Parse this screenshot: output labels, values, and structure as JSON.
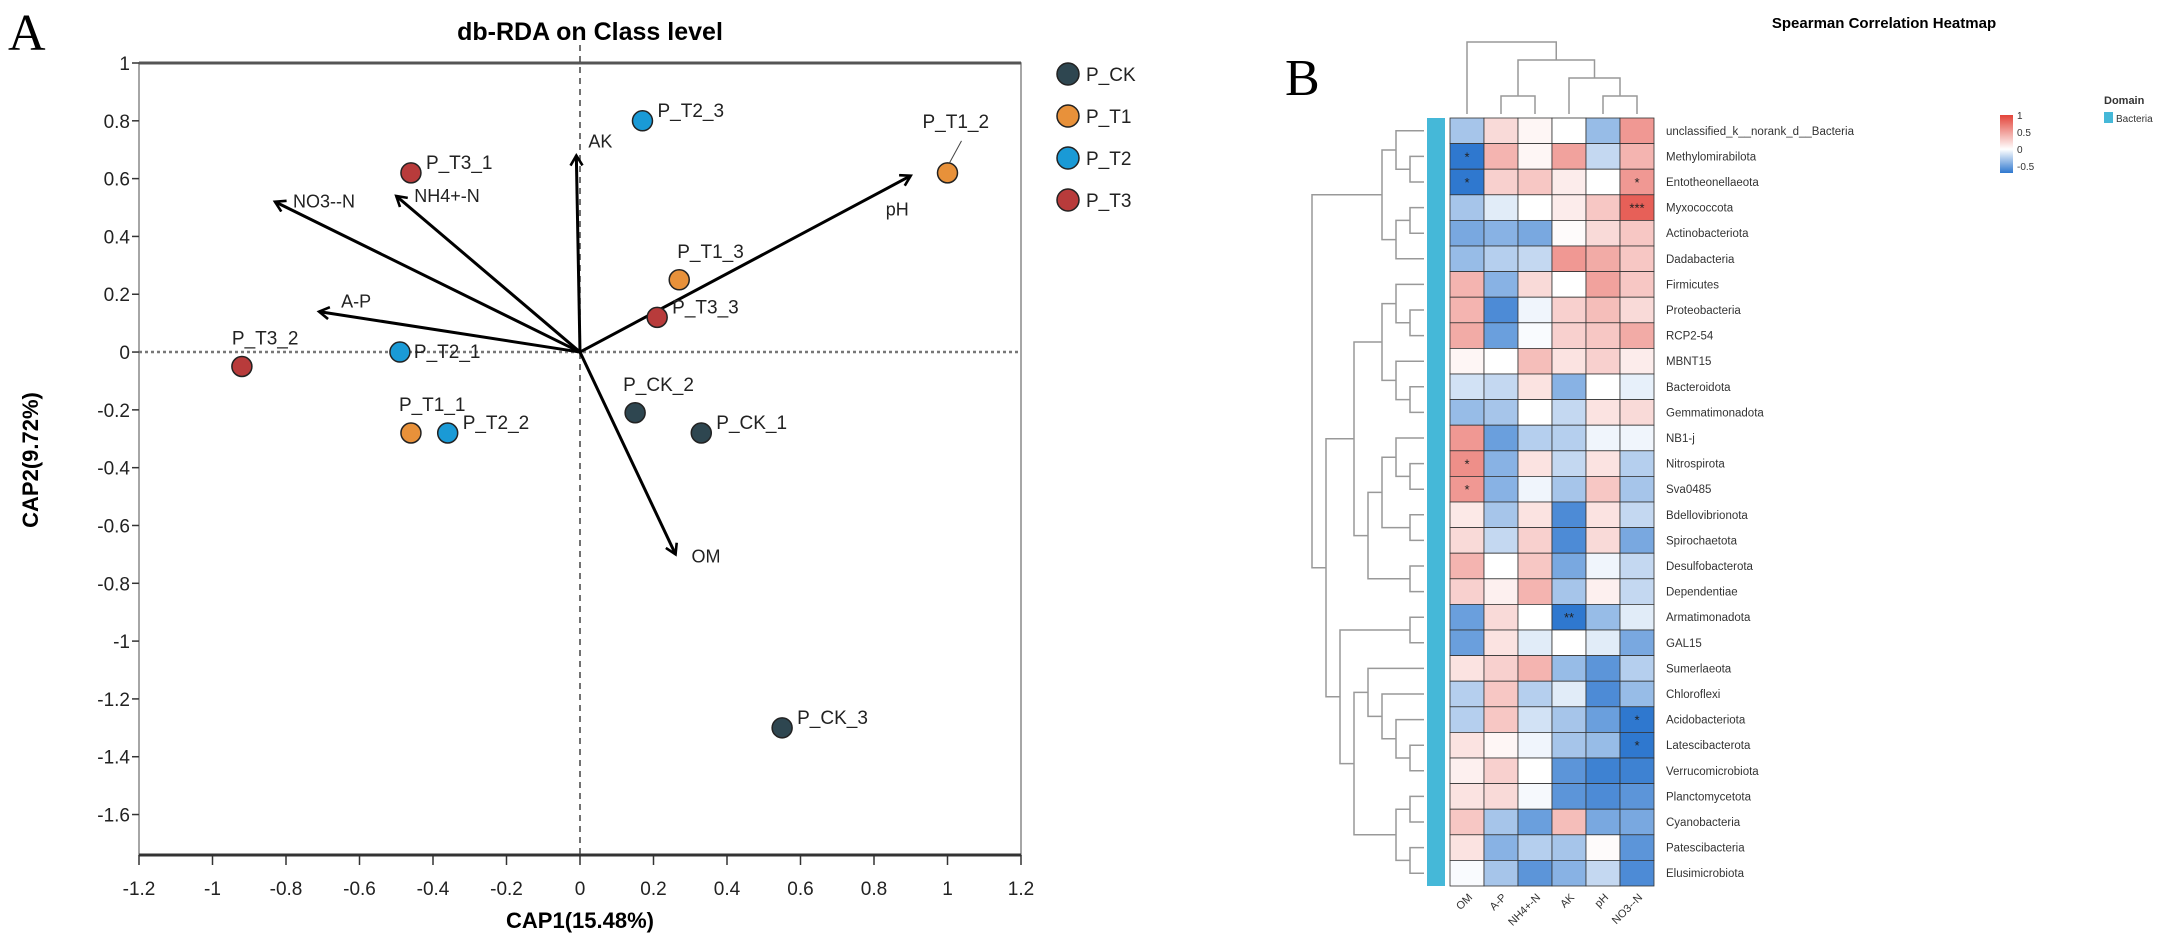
{
  "panel_labels": {
    "a": "A",
    "b": "B"
  },
  "chart_data": [
    {
      "type": "scatter",
      "title": "db-RDA on Class level",
      "xlabel": "CAP1(15.48%)",
      "ylabel": "CAP2(9.72%)",
      "xlim": [
        -1.2,
        1.2
      ],
      "ylim": [
        -1.74,
        1
      ],
      "xticks": [
        "-1.2",
        "-1",
        "-0.8",
        "-0.6",
        "-0.4",
        "-0.2",
        "0",
        "0.2",
        "0.4",
        "0.6",
        "0.8",
        "1",
        "1.2"
      ],
      "yticks": [
        "1",
        "0.8",
        "0.6",
        "0.4",
        "0.2",
        "0",
        "-0.2",
        "-0.4",
        "-0.6",
        "-0.8",
        "-1",
        "-1.2",
        "-1.4",
        "-1.6"
      ],
      "legend": {
        "placement": "right",
        "items": [
          {
            "name": "P_CK",
            "color": "#2e4650"
          },
          {
            "name": "P_T1",
            "color": "#e8913a"
          },
          {
            "name": "P_T2",
            "color": "#1a9ad6"
          },
          {
            "name": "P_T3",
            "color": "#b83b3b"
          }
        ]
      },
      "points": [
        {
          "label": "P_T2_3",
          "group": "P_T2",
          "x": 0.17,
          "y": 0.8
        },
        {
          "label": "P_T1_2",
          "group": "P_T1",
          "x": 1.0,
          "y": 0.62
        },
        {
          "label": "P_T3_1",
          "group": "P_T3",
          "x": -0.46,
          "y": 0.62
        },
        {
          "label": "P_T1_3",
          "group": "P_T1",
          "x": 0.27,
          "y": 0.25
        },
        {
          "label": "P_T3_3",
          "group": "P_T3",
          "x": 0.21,
          "y": 0.12
        },
        {
          "label": "P_T3_2",
          "group": "P_T3",
          "x": -0.92,
          "y": -0.05
        },
        {
          "label": "P_T2_1",
          "group": "P_T2",
          "x": -0.49,
          "y": 0.0
        },
        {
          "label": "P_CK_2",
          "group": "P_CK",
          "x": 0.15,
          "y": -0.21
        },
        {
          "label": "P_CK_1",
          "group": "P_CK",
          "x": 0.33,
          "y": -0.28
        },
        {
          "label": "P_T1_1",
          "group": "P_T1",
          "x": -0.46,
          "y": -0.28
        },
        {
          "label": "P_T2_2",
          "group": "P_T2",
          "x": -0.36,
          "y": -0.28
        },
        {
          "label": "P_CK_3",
          "group": "P_CK",
          "x": 0.55,
          "y": -1.3
        }
      ],
      "arrows": [
        {
          "label": "AK",
          "x": -0.01,
          "y": 0.68
        },
        {
          "label": "pH",
          "x": 0.9,
          "y": 0.61
        },
        {
          "label": "NO3--N",
          "x": -0.83,
          "y": 0.52
        },
        {
          "label": "NH4+-N",
          "x": -0.5,
          "y": 0.54
        },
        {
          "label": "A-P",
          "x": -0.71,
          "y": 0.14
        },
        {
          "label": "OM",
          "x": 0.26,
          "y": -0.7
        }
      ]
    },
    {
      "type": "heatmap",
      "title": "Spearman Correlation Heatmap",
      "columns": [
        "OM",
        "A-P",
        "NH4+-N",
        "AK",
        "pH",
        "NO3--N"
      ],
      "rows": [
        "unclassified_k__norank_d__Bacteria",
        "Methylomirabilota",
        "Entotheonellaeota",
        "Myxococcota",
        "Actinobacteriota",
        "Dadabacteria",
        "Firmicutes",
        "Proteobacteria",
        "RCP2-54",
        "MBNT15",
        "Bacteroidota",
        "Gemmatimonadota",
        "NB1-j",
        "Nitrospirota",
        "Sva0485",
        "Bdellovibrionota",
        "Spirochaetota",
        "Desulfobacterota",
        "Dependentiae",
        "Armatimonadota",
        "GAL15",
        "Sumerlaeota",
        "Chloroflexi",
        "Acidobacteriota",
        "Latescibacterota",
        "Verrucomicrobiota",
        "Planctomycetota",
        "Cyanobacteria",
        "Patescibacteria",
        "Elusimicrobiota"
      ],
      "values": [
        [
          -0.3,
          0.2,
          0.05,
          0.0,
          -0.35,
          0.55
        ],
        [
          -0.75,
          0.4,
          0.05,
          0.5,
          -0.2,
          0.4
        ],
        [
          -0.75,
          0.25,
          0.3,
          0.1,
          0.0,
          0.55
        ],
        [
          -0.3,
          -0.1,
          0.0,
          0.1,
          0.3,
          0.85
        ],
        [
          -0.45,
          -0.4,
          -0.45,
          0.02,
          0.2,
          0.3
        ],
        [
          -0.35,
          -0.25,
          -0.2,
          0.55,
          0.45,
          0.3
        ],
        [
          0.4,
          -0.4,
          0.2,
          0.0,
          0.5,
          0.3
        ],
        [
          0.4,
          -0.6,
          -0.05,
          0.25,
          0.35,
          0.2
        ],
        [
          0.45,
          -0.5,
          -0.02,
          0.25,
          0.3,
          0.45
        ],
        [
          0.05,
          0.0,
          0.35,
          0.15,
          0.25,
          0.1
        ],
        [
          -0.15,
          -0.2,
          0.15,
          -0.4,
          0.0,
          -0.08
        ],
        [
          -0.35,
          -0.3,
          0.0,
          -0.2,
          0.15,
          0.2
        ],
        [
          0.55,
          -0.5,
          -0.25,
          -0.25,
          -0.05,
          -0.05
        ],
        [
          0.6,
          -0.4,
          0.15,
          -0.2,
          0.15,
          -0.25
        ],
        [
          0.55,
          -0.4,
          -0.05,
          -0.3,
          0.3,
          -0.3
        ],
        [
          0.12,
          -0.3,
          0.15,
          -0.6,
          0.15,
          -0.2
        ],
        [
          0.2,
          -0.2,
          0.25,
          -0.6,
          0.2,
          -0.45
        ],
        [
          0.4,
          0.0,
          0.3,
          -0.45,
          -0.05,
          -0.2
        ],
        [
          0.25,
          0.08,
          0.4,
          -0.3,
          0.08,
          -0.2
        ],
        [
          -0.5,
          0.2,
          0.0,
          -0.8,
          -0.35,
          -0.1
        ],
        [
          -0.5,
          0.15,
          -0.1,
          0.0,
          -0.1,
          -0.45
        ],
        [
          0.15,
          0.25,
          0.4,
          -0.35,
          -0.55,
          -0.25
        ],
        [
          -0.25,
          0.3,
          -0.25,
          -0.1,
          -0.6,
          -0.35
        ],
        [
          -0.25,
          0.3,
          -0.15,
          -0.3,
          -0.5,
          -0.7
        ],
        [
          0.15,
          0.05,
          -0.05,
          -0.3,
          -0.35,
          -0.7
        ],
        [
          0.08,
          0.25,
          0.0,
          -0.55,
          -0.65,
          -0.65
        ],
        [
          0.15,
          0.2,
          -0.03,
          -0.55,
          -0.6,
          -0.55
        ],
        [
          0.3,
          -0.3,
          -0.5,
          0.35,
          -0.45,
          -0.45
        ],
        [
          0.15,
          -0.4,
          -0.25,
          -0.3,
          0.02,
          -0.55
        ],
        [
          -0.02,
          -0.3,
          -0.55,
          -0.4,
          -0.2,
          -0.6
        ]
      ],
      "significance": [
        {
          "row": 1,
          "col": 0,
          "label": "*"
        },
        {
          "row": 2,
          "col": 0,
          "label": "*"
        },
        {
          "row": 2,
          "col": 5,
          "label": "*"
        },
        {
          "row": 3,
          "col": 5,
          "label": "***"
        },
        {
          "row": 13,
          "col": 0,
          "label": "*"
        },
        {
          "row": 14,
          "col": 0,
          "label": "*"
        },
        {
          "row": 19,
          "col": 3,
          "label": "**"
        },
        {
          "row": 23,
          "col": 5,
          "label": "*"
        },
        {
          "row": 24,
          "col": 5,
          "label": "*"
        }
      ],
      "colorbar": {
        "ticks": [
          "1",
          "0.5",
          "0",
          "-0.5"
        ],
        "range": [
          -0.7,
          1
        ],
        "low": "#2f78cf",
        "mid": "#ffffff",
        "high": "#e3443a"
      },
      "annotation_legend": {
        "title": "Domain",
        "items": [
          {
            "name": "Bacteria",
            "color": "#45b8d8"
          }
        ]
      }
    }
  ]
}
